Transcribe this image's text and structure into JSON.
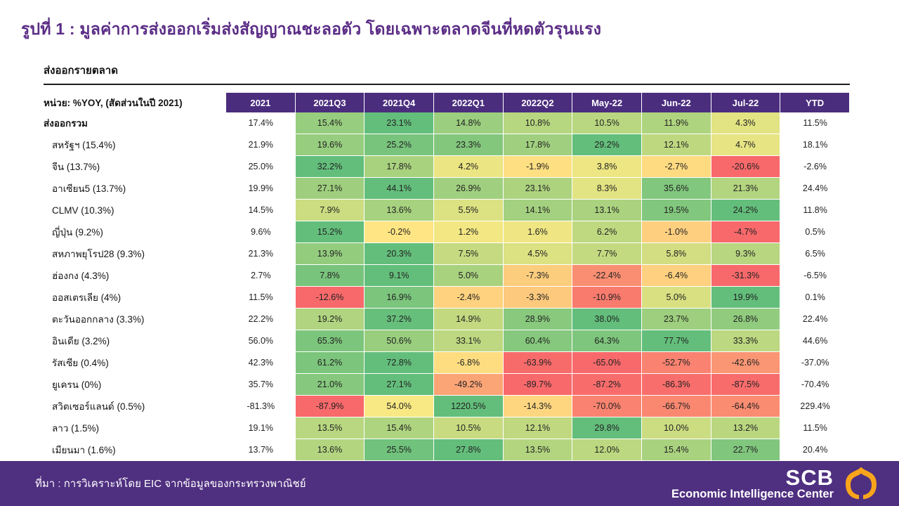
{
  "title": "รูปที่ 1 : มูลค่าการส่งออกเริ่มส่งสัญญาณชะลอตัว โดยเฉพาะตลาดจีนที่หดตัวรุนแรง",
  "chart_data": {
    "type": "heatmap",
    "title": "รูปที่ 1 : มูลค่าการส่งออกเริ่มส่งสัญญาณชะลอตัว โดยเฉพาะตลาดจีนที่หดตัวรุนแรง",
    "subtitle": "ส่งออกรายตลาด",
    "unit_label": "หน่วย: %YOY, (สัดส่วนในปี 2021)",
    "value_suffix": "%",
    "columns": [
      "2021",
      "2021Q3",
      "2021Q4",
      "2022Q1",
      "2022Q2",
      "May-22",
      "Jun-22",
      "Jul-22",
      "YTD"
    ],
    "colored_column_indices": [
      1,
      2,
      3,
      4,
      5,
      6,
      7
    ],
    "colorscale": {
      "min": "#F8696B",
      "mid": "#FFEB84",
      "max": "#63BE7B",
      "midpoint_value": 0,
      "scope": "per-row"
    },
    "rows": [
      {
        "label": "ส่งออกรวม",
        "bold": true,
        "values": [
          17.4,
          15.4,
          23.1,
          14.8,
          10.8,
          10.5,
          11.9,
          4.3,
          11.5
        ]
      },
      {
        "label": "สหรัฐฯ (15.4%)",
        "values": [
          21.9,
          19.6,
          25.2,
          23.3,
          17.8,
          29.2,
          12.1,
          4.7,
          18.1
        ]
      },
      {
        "label": "จีน (13.7%)",
        "values": [
          25.0,
          32.2,
          17.8,
          4.2,
          -1.9,
          3.8,
          -2.7,
          -20.6,
          -2.6
        ]
      },
      {
        "label": "อาเซียน5 (13.7%)",
        "values": [
          19.9,
          27.1,
          44.1,
          26.9,
          23.1,
          8.3,
          35.6,
          21.3,
          24.4
        ]
      },
      {
        "label": "CLMV (10.3%)",
        "values": [
          14.5,
          7.9,
          13.6,
          5.5,
          14.1,
          13.1,
          19.5,
          24.2,
          11.8
        ]
      },
      {
        "label": "ญี่ปุ่น (9.2%)",
        "values": [
          9.6,
          15.2,
          -0.2,
          1.2,
          1.6,
          6.2,
          -1.0,
          -4.7,
          0.5
        ]
      },
      {
        "label": "สหภาพยุโรป28 (9.3%)",
        "values": [
          21.3,
          13.9,
          20.3,
          7.5,
          4.5,
          7.7,
          5.8,
          9.3,
          6.5
        ]
      },
      {
        "label": "ฮ่องกง (4.3%)",
        "values": [
          2.7,
          7.8,
          9.1,
          5.0,
          -7.3,
          -22.4,
          -6.4,
          -31.3,
          -6.5
        ]
      },
      {
        "label": "ออสเตรเลีย (4%)",
        "values": [
          11.5,
          -12.6,
          16.9,
          -2.4,
          -3.3,
          -10.9,
          5.0,
          19.9,
          0.1
        ]
      },
      {
        "label": "ตะวันออกกลาง (3.3%)",
        "values": [
          22.2,
          19.2,
          37.2,
          14.9,
          28.9,
          38.0,
          23.7,
          26.8,
          22.4
        ]
      },
      {
        "label": "อินเดีย (3.2%)",
        "values": [
          56.0,
          65.3,
          50.6,
          33.1,
          60.4,
          64.3,
          77.7,
          33.3,
          44.6
        ]
      },
      {
        "label": "รัสเซีย (0.4%)",
        "values": [
          42.3,
          61.2,
          72.8,
          -6.8,
          -63.9,
          -65.0,
          -52.7,
          -42.6,
          -37.0
        ]
      },
      {
        "label": "ยูเครน (0%)",
        "values": [
          35.7,
          21.0,
          27.1,
          -49.2,
          -89.7,
          -87.2,
          -86.3,
          -87.5,
          -70.4
        ]
      },
      {
        "label": "สวิตเซอร์แลนด์ (0.5%)",
        "values": [
          -81.3,
          -87.9,
          54.0,
          1220.5,
          -14.3,
          -70.0,
          -66.7,
          -64.4,
          229.4
        ]
      },
      {
        "label": "ลาว (1.5%)",
        "values": [
          19.1,
          13.5,
          15.4,
          10.5,
          12.1,
          29.8,
          10.0,
          13.2,
          11.5
        ]
      },
      {
        "label": "เมียนมา (1.6%)",
        "values": [
          13.7,
          13.6,
          25.5,
          27.8,
          13.5,
          12.0,
          15.4,
          22.7,
          20.4
        ]
      }
    ]
  },
  "footer": {
    "source": "ที่มา : การวิเคราะห์โดย EIC จากข้อมูลของกระทรวงพาณิชย์",
    "logo": {
      "brand": "SCB",
      "subbrand": "Economic Intelligence Center"
    }
  },
  "colors": {
    "title_purple": "#5B2D86",
    "header_purple": "#4B2D7E",
    "footer_purple": "#4F2F80",
    "logo_gold": "#F9A51B",
    "heat_red": "#F8696B",
    "heat_yellow": "#FFEB84",
    "heat_green": "#63BE7B"
  }
}
